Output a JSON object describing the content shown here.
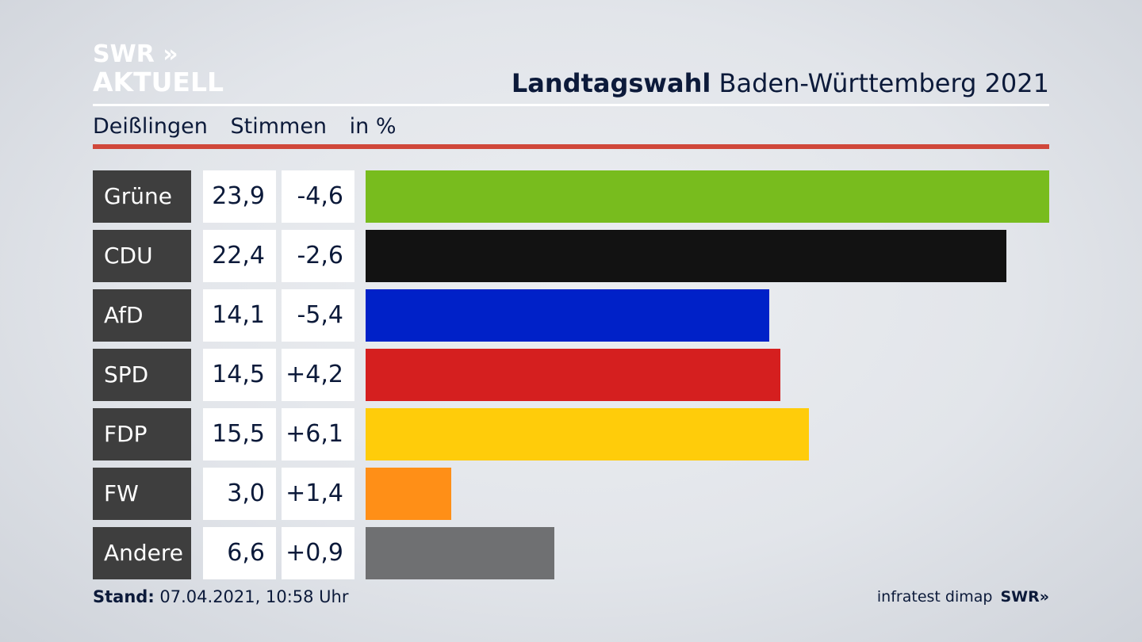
{
  "logo": {
    "line1": "SWR »",
    "line2": "AKTUELL"
  },
  "header": {
    "title_bold": "Landtagswahl",
    "title_rest": " Baden-Württemberg 2021"
  },
  "subheader": {
    "place": "Deißlingen",
    "measure": "Stimmen",
    "unit": "in %"
  },
  "footer": {
    "stand_label": "Stand:",
    "stand_value": " 07.04.2021, 10:58 Uhr",
    "source": "infratest dimap",
    "brand": "SWR»"
  },
  "chart_data": {
    "type": "bar",
    "orientation": "horizontal",
    "xlim": [
      0,
      23.9
    ],
    "categories": [
      "Grüne",
      "CDU",
      "AfD",
      "SPD",
      "FDP",
      "FW",
      "Andere"
    ],
    "values": [
      23.9,
      22.4,
      14.1,
      14.5,
      15.5,
      3.0,
      6.6
    ],
    "value_labels": [
      "23,9",
      "22,4",
      "14,1",
      "14,5",
      "15,5",
      "3,0",
      "6,6"
    ],
    "diff_labels": [
      "-4,6",
      "-2,6",
      "-5,4",
      "+4,2",
      "+6,1",
      "+1,4",
      "+0,9"
    ],
    "colors": [
      "#78bc1e",
      "#121212",
      "#0021c8",
      "#d51f1f",
      "#ffcc0a",
      "#ff8f17",
      "#6f7072"
    ]
  }
}
